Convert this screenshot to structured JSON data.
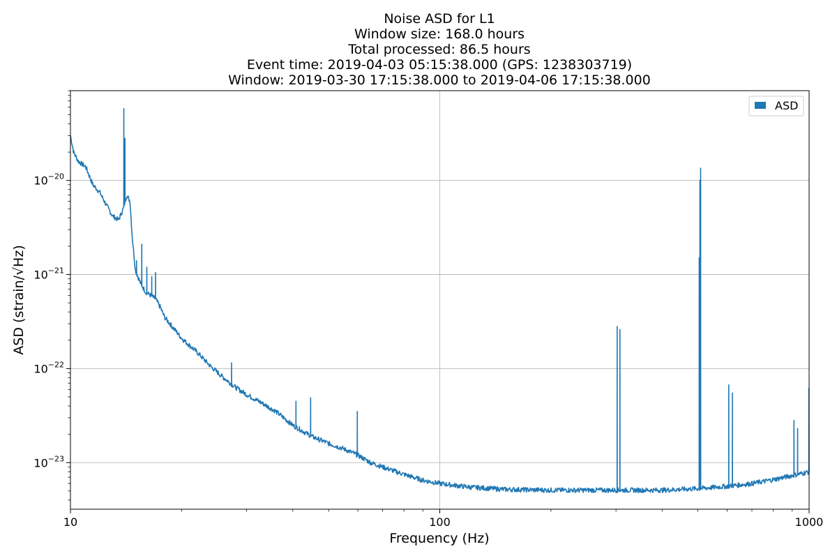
{
  "chart_data": {
    "type": "line",
    "title_lines": [
      "Noise ASD for L1",
      "Window size: 168.0 hours",
      "Total processed: 86.5 hours",
      "Event time: 2019-04-03 05:15:38.000 (GPS: 1238303719)",
      "Window: 2019-03-30 17:15:38.000 to 2019-04-06 17:15:38.000"
    ],
    "xlabel": "Frequency (Hz)",
    "ylabel": "ASD (strain/√Hz)",
    "xscale": "log",
    "yscale": "log",
    "xlim": [
      10,
      1000
    ],
    "ylim": [
      3.2e-24,
      9e-20
    ],
    "grid": true,
    "legend_position": "top-right",
    "x_tick_labels": [
      {
        "value": 10,
        "label": "10"
      },
      {
        "value": 100,
        "label": "100"
      },
      {
        "value": 1000,
        "label": "1000"
      }
    ],
    "y_tick_labels": [
      {
        "value": 1e-20,
        "base": "10",
        "exp": "−20"
      },
      {
        "value": 1e-21,
        "base": "10",
        "exp": "−21"
      },
      {
        "value": 1e-22,
        "base": "10",
        "exp": "−22"
      },
      {
        "value": 1e-23,
        "base": "10",
        "exp": "−23"
      }
    ],
    "series": [
      {
        "name": "ASD",
        "color": "#1f77b4",
        "baseline": [
          [
            10.0,
            3e-20
          ],
          [
            10.2,
            2e-20
          ],
          [
            10.5,
            1.6e-20
          ],
          [
            11.0,
            1.4e-20
          ],
          [
            11.5,
            9e-21
          ],
          [
            12.0,
            7.5e-21
          ],
          [
            12.5,
            5.5e-21
          ],
          [
            13.0,
            4.2e-21
          ],
          [
            13.5,
            3.8e-21
          ],
          [
            13.9,
            5e-21
          ],
          [
            14.2,
            7e-21
          ],
          [
            14.5,
            6e-21
          ],
          [
            14.7,
            2.5e-21
          ],
          [
            15.0,
            1.1e-21
          ],
          [
            15.5,
            8e-22
          ],
          [
            16.0,
            6.5e-22
          ],
          [
            16.5,
            6e-22
          ],
          [
            17.0,
            5.5e-22
          ],
          [
            17.5,
            4.5e-22
          ],
          [
            18.0,
            3.5e-22
          ],
          [
            19.0,
            2.7e-22
          ],
          [
            20.0,
            2.1e-22
          ],
          [
            22.0,
            1.5e-22
          ],
          [
            24.0,
            1.05e-22
          ],
          [
            26.0,
            8e-23
          ],
          [
            28.0,
            6.3e-23
          ],
          [
            30.0,
            5.3e-23
          ],
          [
            33.0,
            4.3e-23
          ],
          [
            36.0,
            3.5e-23
          ],
          [
            40.0,
            2.5e-23
          ],
          [
            45.0,
            1.9e-23
          ],
          [
            50.0,
            1.6e-23
          ],
          [
            55.0,
            1.4e-23
          ],
          [
            60.0,
            1.2e-23
          ],
          [
            65.0,
            1e-23
          ],
          [
            70.0,
            9e-24
          ],
          [
            80.0,
            7.5e-24
          ],
          [
            90.0,
            6.5e-24
          ],
          [
            100.0,
            6e-24
          ],
          [
            120.0,
            5.5e-24
          ],
          [
            150.0,
            5.2e-24
          ],
          [
            200.0,
            5.1e-24
          ],
          [
            250.0,
            5.1e-24
          ],
          [
            300.0,
            5.1e-24
          ],
          [
            400.0,
            5.1e-24
          ],
          [
            500.0,
            5.3e-24
          ],
          [
            600.0,
            5.6e-24
          ],
          [
            700.0,
            6e-24
          ],
          [
            800.0,
            6.6e-24
          ],
          [
            900.0,
            7.3e-24
          ],
          [
            1000.0,
            8e-24
          ]
        ],
        "peaks": [
          [
            13.95,
            5.8e-20
          ],
          [
            14.05,
            2.8e-20
          ],
          [
            15.1,
            1.4e-21
          ],
          [
            15.6,
            2.1e-21
          ],
          [
            16.1,
            1.2e-21
          ],
          [
            16.6,
            9.5e-22
          ],
          [
            17.0,
            1.05e-21
          ],
          [
            27.3,
            1.15e-22
          ],
          [
            40.8,
            4.5e-23
          ],
          [
            44.7,
            4.9e-23
          ],
          [
            59.8,
            3.5e-23
          ],
          [
            302.2,
            2.8e-22
          ],
          [
            307.4,
            2.6e-22
          ],
          [
            504.0,
            1.5e-21
          ],
          [
            506.2,
            1e-20
          ],
          [
            508.5,
            1.35e-20
          ],
          [
            606.0,
            6.7e-23
          ],
          [
            620.0,
            5.5e-23
          ],
          [
            910.0,
            2.8e-23
          ],
          [
            931.0,
            2.3e-23
          ],
          [
            999.0,
            6.2e-23
          ]
        ]
      }
    ]
  }
}
